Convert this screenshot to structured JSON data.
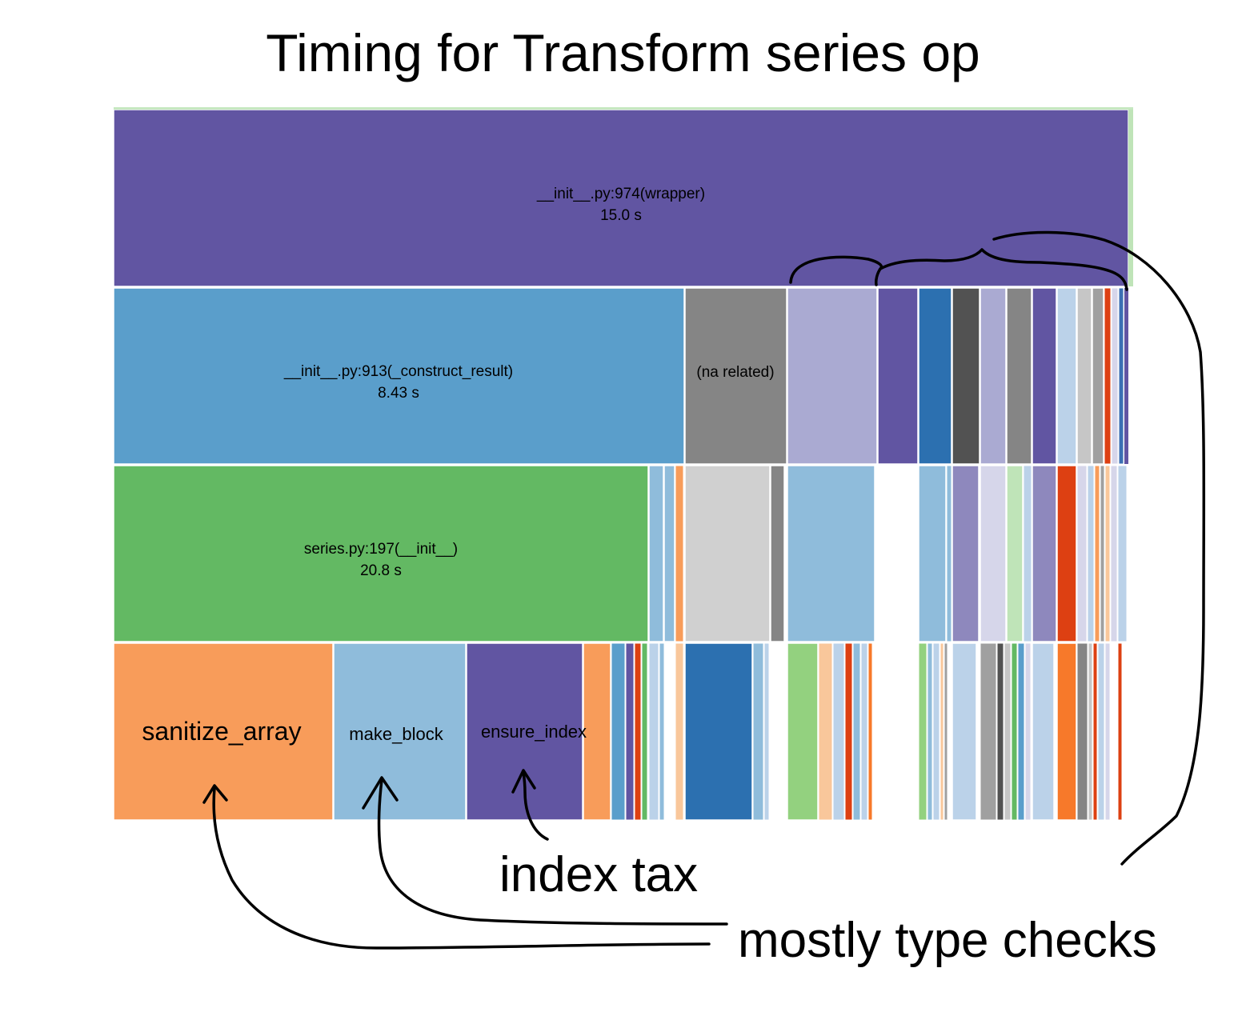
{
  "title": "Timing for Transform series op",
  "row_top": {
    "name": "__init__.py:974(wrapper)",
    "time": "15.0 s"
  },
  "row_second": {
    "name": "__init__.py:913(_construct_result)",
    "time": "8.43 s",
    "na_label": "(na related)"
  },
  "row_third": {
    "name": "series.py:197(__init__)",
    "time": "20.8 s"
  },
  "row_bottom": {
    "sanitize": "sanitize_array",
    "make_block": "make_block",
    "ensure_index": "ensure_index"
  },
  "annotations": {
    "index_tax": "index tax",
    "type_checks": "mostly type checks"
  },
  "colors": {
    "purple": "#6155a2",
    "blue": "#5a9ecb",
    "green": "#63b963",
    "orange": "#f89c5a",
    "light_blue": "#8fbcdb",
    "gray": "#858585",
    "light_gray": "#d0d0d0",
    "lavender": "#aaaad2"
  }
}
